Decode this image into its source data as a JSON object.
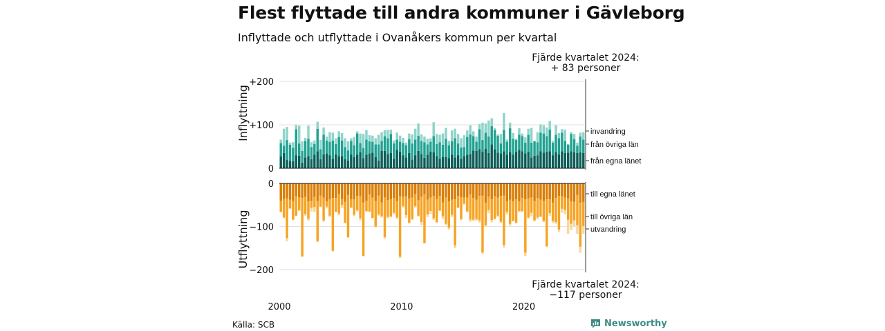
{
  "title": "Flest flyttade till andra kommuner i Gävleborg",
  "subtitle": "Inflyttade och utflyttade i Ovanåkers kommun per kvartal",
  "source": "Källa: SCB",
  "brand": "Newsworthy",
  "annotation_top": {
    "line1": "Fjärde kvartalet 2024:",
    "line2": "+ 83 personer"
  },
  "annotation_bottom": {
    "line1": "Fjärde kvartalet 2024:",
    "line2": "−117 personer"
  },
  "colors": {
    "egna_lanet_in": "#0b5e57",
    "ovriga_lan_in": "#21a292",
    "invandring": "#8fd4ca",
    "egna_lanet_ut": "#d97e08",
    "ovriga_lan_ut": "#f6a324",
    "utvandring": "#f7d99e"
  },
  "chart_data": [
    {
      "type": "bar",
      "stacked": true,
      "ylabel": "Inflyttning",
      "ylim": [
        0,
        200
      ],
      "yticks": [
        "0",
        "+100",
        "+200"
      ],
      "x_ticks": [
        "2000",
        "2010",
        "2020"
      ],
      "x_start": "2000 Q1",
      "x_end": "2024 Q4",
      "categories": "quarters 2000Q1–2024Q4 (100)",
      "series_labels": [
        "från egna länet",
        "från övriga län",
        "invandring"
      ],
      "series": [
        {
          "name": "från egna länet",
          "values": [
            27,
            35,
            19,
            17,
            16,
            30,
            29,
            13,
            25,
            28,
            21,
            31,
            39,
            21,
            32,
            34,
            30,
            22,
            32,
            28,
            28,
            21,
            18,
            32,
            26,
            31,
            37,
            23,
            31,
            34,
            36,
            26,
            18,
            40,
            40,
            33,
            35,
            22,
            42,
            38,
            30,
            25,
            35,
            20,
            30,
            40,
            33,
            24,
            31,
            38,
            37,
            28,
            22,
            26,
            26,
            23,
            31,
            25,
            30,
            22,
            28,
            31,
            33,
            41,
            40,
            44,
            38,
            45,
            35,
            55,
            44,
            36,
            34,
            39,
            31,
            37,
            31,
            38,
            42,
            39,
            34,
            38,
            25,
            29,
            30,
            39,
            36,
            38,
            39,
            30,
            37,
            32,
            39,
            35,
            36,
            39,
            37,
            35,
            37,
            35
          ]
        },
        {
          "name": "från övriga län",
          "values": [
            31,
            17,
            46,
            37,
            31,
            60,
            28,
            27,
            38,
            40,
            28,
            25,
            52,
            23,
            45,
            30,
            31,
            42,
            24,
            44,
            36,
            28,
            23,
            31,
            27,
            49,
            21,
            24,
            35,
            28,
            25,
            29,
            37,
            23,
            34,
            36,
            44,
            35,
            24,
            23,
            28,
            28,
            32,
            37,
            36,
            35,
            30,
            36,
            24,
            23,
            37,
            28,
            38,
            28,
            42,
            30,
            31,
            44,
            27,
            26,
            21,
            41,
            45,
            33,
            21,
            46,
            27,
            37,
            38,
            42,
            44,
            39,
            23,
            49,
            30,
            55,
            37,
            27,
            35,
            35,
            25,
            39,
            34,
            33,
            30,
            43,
            44,
            36,
            50,
            29,
            40,
            37,
            43,
            28,
            18,
            40,
            30,
            17,
            36,
            31
          ]
        },
        {
          "name": "invandring",
          "values": [
            8,
            39,
            30,
            5,
            13,
            10,
            41,
            22,
            7,
            30,
            11,
            8,
            16,
            21,
            17,
            9,
            22,
            18,
            13,
            13,
            17,
            20,
            21,
            6,
            19,
            5,
            22,
            32,
            22,
            14,
            14,
            14,
            22,
            20,
            14,
            19,
            10,
            7,
            16,
            14,
            12,
            6,
            13,
            21,
            25,
            28,
            15,
            13,
            13,
            8,
            32,
            23,
            17,
            26,
            25,
            10,
            25,
            22,
            22,
            21,
            27,
            15,
            21,
            11,
            12,
            12,
            40,
            21,
            37,
            18,
            4,
            3,
            22,
            39,
            5,
            13,
            13,
            3,
            15,
            6,
            12,
            14,
            34,
            1,
            23,
            19,
            19,
            20,
            20,
            4,
            22,
            12,
            8,
            26,
            2,
            4,
            12,
            7,
            9,
            17
          ]
        }
      ]
    },
    {
      "type": "bar",
      "stacked": true,
      "ylabel": "Utflyttning",
      "ylim": [
        -200,
        0
      ],
      "yticks": [
        "0",
        "−100",
        "−200"
      ],
      "series_labels": [
        "till egna länet",
        "till övriga län",
        "utvandring"
      ],
      "series": [
        {
          "name": "till egna länet",
          "values": [
            -40,
            -36,
            -35,
            -38,
            -41,
            -30,
            -32,
            -34,
            -31,
            -42,
            -40,
            -31,
            -41,
            -28,
            -33,
            -42,
            -36,
            -34,
            -34,
            -25,
            -37,
            -43,
            -27,
            -36,
            -37,
            -29,
            -30,
            -44,
            -40,
            -26,
            -33,
            -40,
            -28,
            -44,
            -32,
            -39,
            -37,
            -34,
            -41,
            -30,
            -31,
            -30,
            -35,
            -33,
            -25,
            -39,
            -31,
            -25,
            -38,
            -33,
            -29,
            -36,
            -29,
            -44,
            -32,
            -42,
            -38,
            -37,
            -29,
            -32,
            -33,
            -33,
            -26,
            -34,
            -38,
            -29,
            -28,
            -45,
            -31,
            -37,
            -30,
            -33,
            -29,
            -28,
            -42,
            -38,
            -42,
            -37,
            -42,
            -34,
            -37,
            -35,
            -33,
            -41,
            -34,
            -38,
            -40,
            -37,
            -37,
            -44,
            -34,
            -29,
            -30,
            -33,
            -35,
            -42,
            -43,
            -27,
            -45,
            -43
          ]
        },
        {
          "name": "till övriga län",
          "values": [
            -26,
            -43,
            -92,
            -20,
            -43,
            -45,
            -30,
            -135,
            -40,
            -40,
            -17,
            -24,
            -93,
            -26,
            -53,
            -12,
            -39,
            -122,
            -32,
            -45,
            -13,
            -48,
            -98,
            -20,
            -36,
            -33,
            -51,
            -124,
            -24,
            -39,
            -47,
            -60,
            -44,
            -32,
            -93,
            -39,
            -40,
            -34,
            -38,
            -140,
            -22,
            -44,
            -56,
            -50,
            -28,
            -36,
            -59,
            -113,
            -34,
            -31,
            -52,
            -54,
            -34,
            -32,
            -62,
            -61,
            -35,
            -107,
            -27,
            -51,
            -14,
            -32,
            -58,
            -50,
            -45,
            -57,
            -132,
            -52,
            -31,
            -48,
            -52,
            -42,
            -60,
            -115,
            -24,
            -56,
            -45,
            -54,
            -22,
            -30,
            -124,
            -44,
            -35,
            -45,
            -45,
            -39,
            -47,
            -109,
            -32,
            -43,
            -56,
            -78,
            -29,
            -29,
            -49,
            -52,
            -43,
            -70,
            -102,
            -56
          ]
        },
        {
          "name": "utvandring",
          "values": [
            -1,
            -2,
            -7,
            -2,
            -1,
            -1,
            -2,
            -2,
            -4,
            -4,
            -8,
            -11,
            -2,
            -1,
            -3,
            -4,
            -3,
            -2,
            -1,
            -4,
            -7,
            -2,
            -1,
            -1,
            -3,
            -3,
            -5,
            -1,
            -2,
            -2,
            -1,
            -2,
            -3,
            -3,
            -3,
            -3,
            -1,
            -4,
            -4,
            -3,
            -3,
            -6,
            -2,
            -2,
            -3,
            -2,
            -7,
            -2,
            -6,
            -7,
            -4,
            -2,
            -1,
            -6,
            -3,
            -4,
            -5,
            -6,
            -1,
            -2,
            -3,
            -2,
            -5,
            -3,
            -3,
            -5,
            -3,
            -3,
            -7,
            -5,
            -2,
            -3,
            -3,
            -6,
            -6,
            -4,
            -1,
            -2,
            -3,
            -3,
            -7,
            -3,
            -8,
            -2,
            -4,
            -1,
            -3,
            -2,
            -6,
            -5,
            -4,
            -5,
            -9,
            -10,
            -33,
            -14,
            -14,
            -20,
            -14,
            -18
          ]
        }
      ]
    }
  ]
}
